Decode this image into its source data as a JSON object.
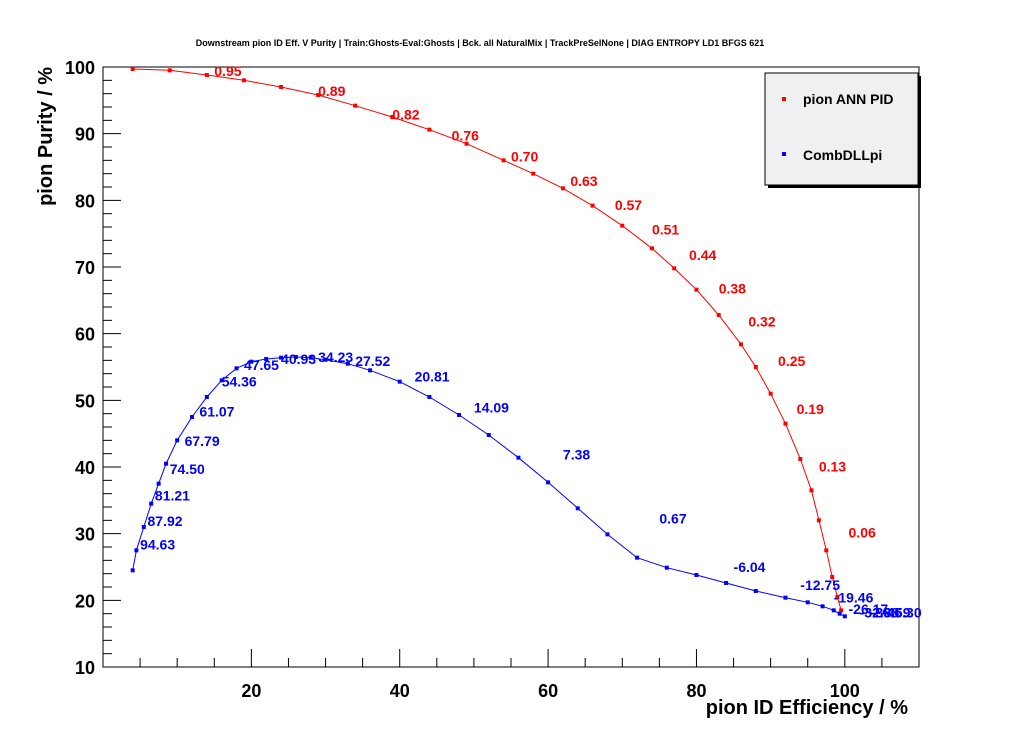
{
  "chart_data": {
    "type": "line",
    "title": "Downstream pion ID Eff. V Purity | Train:Ghosts-Eval:Ghosts | Bck. all NaturalMix | TrackPreSelNone | DIAG ENTROPY LD1 BFGS 621",
    "xlabel": "pion ID Efficiency / %",
    "ylabel": "pion Purity / %",
    "xlim": [
      0,
      110
    ],
    "ylim": [
      10,
      100
    ],
    "x_ticks": [
      20,
      40,
      60,
      80,
      100
    ],
    "y_ticks": [
      10,
      20,
      30,
      40,
      50,
      60,
      70,
      80,
      90,
      100
    ],
    "grid": false,
    "legend_position": "top-right",
    "series": [
      {
        "name": "pion ANN PID",
        "color": "#ff0000",
        "x": [
          4,
          9,
          14,
          19,
          24,
          29,
          34,
          39,
          44,
          49,
          54,
          58,
          62,
          66,
          70,
          74,
          77,
          80,
          83,
          86,
          88,
          90,
          92,
          94,
          95.5,
          96.5,
          97.5,
          98.3,
          99,
          99.5
        ],
        "y": [
          99.7,
          99.5,
          98.8,
          98,
          97,
          95.8,
          94.2,
          92.5,
          90.6,
          88.5,
          86,
          84,
          81.8,
          79.2,
          76.2,
          72.8,
          69.8,
          66.6,
          62.8,
          58.4,
          55,
          51,
          46.5,
          41.2,
          36.5,
          32,
          27.5,
          23.5,
          20.5,
          18.5
        ],
        "annotations": [
          {
            "label": "0.95",
            "x": 15,
            "y": 99.4
          },
          {
            "label": "0.89",
            "x": 29,
            "y": 96.4
          },
          {
            "label": "0.82",
            "x": 39,
            "y": 92.9
          },
          {
            "label": "0.76",
            "x": 47,
            "y": 89.7
          },
          {
            "label": "0.70",
            "x": 55,
            "y": 86.6
          },
          {
            "label": "0.63",
            "x": 63,
            "y": 82.9
          },
          {
            "label": "0.57",
            "x": 69,
            "y": 79.3
          },
          {
            "label": "0.51",
            "x": 74,
            "y": 75.6
          },
          {
            "label": "0.44",
            "x": 79,
            "y": 71.8
          },
          {
            "label": "0.38",
            "x": 83,
            "y": 66.8
          },
          {
            "label": "0.32",
            "x": 87,
            "y": 61.8
          },
          {
            "label": "0.25",
            "x": 91,
            "y": 55.9
          },
          {
            "label": "0.19",
            "x": 93.5,
            "y": 48.7
          },
          {
            "label": "0.13",
            "x": 96.5,
            "y": 40.1
          },
          {
            "label": "0.06",
            "x": 100.5,
            "y": 30.2
          }
        ]
      },
      {
        "name": "CombDLLpi",
        "color": "#0000ff",
        "x": [
          4,
          4.5,
          5.5,
          6.5,
          7.5,
          8.5,
          10,
          12,
          14,
          16,
          18,
          20,
          22,
          24,
          26,
          28,
          30,
          33,
          36,
          40,
          44,
          48,
          52,
          56,
          60,
          64,
          68,
          72,
          76,
          80,
          84,
          88,
          92,
          95,
          97,
          98.5,
          99.3,
          100
        ],
        "y": [
          24.5,
          27.5,
          31,
          34.5,
          37.5,
          40.5,
          44,
          47.5,
          50.5,
          53,
          54.8,
          55.8,
          56.2,
          56.4,
          56.5,
          56.4,
          56.1,
          55.5,
          54.5,
          52.8,
          50.5,
          47.8,
          44.8,
          41.4,
          37.7,
          33.8,
          29.9,
          26.4,
          24.9,
          23.8,
          22.6,
          21.4,
          20.4,
          19.7,
          19.1,
          18.5,
          18,
          17.6
        ],
        "annotations": [
          {
            "label": "94.63",
            "x": 5,
            "y": 28.4
          },
          {
            "label": "87.92",
            "x": 6,
            "y": 31.9
          },
          {
            "label": "81.21",
            "x": 7,
            "y": 35.7
          },
          {
            "label": "74.50",
            "x": 9,
            "y": 39.7
          },
          {
            "label": "67.79",
            "x": 11,
            "y": 43.9
          },
          {
            "label": "61.07",
            "x": 13,
            "y": 48.3
          },
          {
            "label": "54.36",
            "x": 16,
            "y": 52.8
          },
          {
            "label": "47.65",
            "x": 19,
            "y": 55.3
          },
          {
            "label": "40.93",
            "x": 24,
            "y": 56.2
          },
          {
            "label": "34.23",
            "x": 29,
            "y": 56.5
          },
          {
            "label": "27.52",
            "x": 34,
            "y": 55.9
          },
          {
            "label": "20.81",
            "x": 42,
            "y": 53.6
          },
          {
            "label": "14.09",
            "x": 50,
            "y": 48.9
          },
          {
            "label": "7.38",
            "x": 62,
            "y": 41.9
          },
          {
            "label": "0.67",
            "x": 75,
            "y": 32.3
          },
          {
            "label": "-6.04",
            "x": 85,
            "y": 25.0
          },
          {
            "label": "-12.75",
            "x": 94,
            "y": 22.3
          },
          {
            "label": "-19.46",
            "x": 98.5,
            "y": 20.4
          },
          {
            "label": "-26.17",
            "x": 100.5,
            "y": 18.7
          },
          {
            "label": "-32.88",
            "x": 102,
            "y": 18.2
          },
          {
            "label": "-39.59",
            "x": 103.5,
            "y": 18.2
          },
          {
            "label": "-46.30",
            "x": 105,
            "y": 18.2
          }
        ]
      }
    ]
  }
}
